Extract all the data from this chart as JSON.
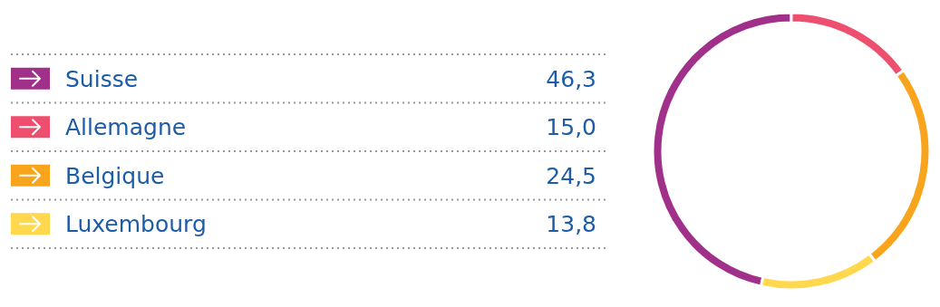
{
  "chart_data": {
    "type": "donut",
    "categories": [
      "Suisse",
      "Allemagne",
      "Belgique",
      "Luxembourg"
    ],
    "values": [
      46.3,
      15.0,
      24.5,
      13.8
    ],
    "colors": [
      "#a0308a",
      "#ef4f6e",
      "#f8a51d",
      "#ffd84d"
    ],
    "value_labels": [
      "46,3",
      "15,0",
      "24,5",
      "13,8"
    ],
    "legend": "left"
  }
}
